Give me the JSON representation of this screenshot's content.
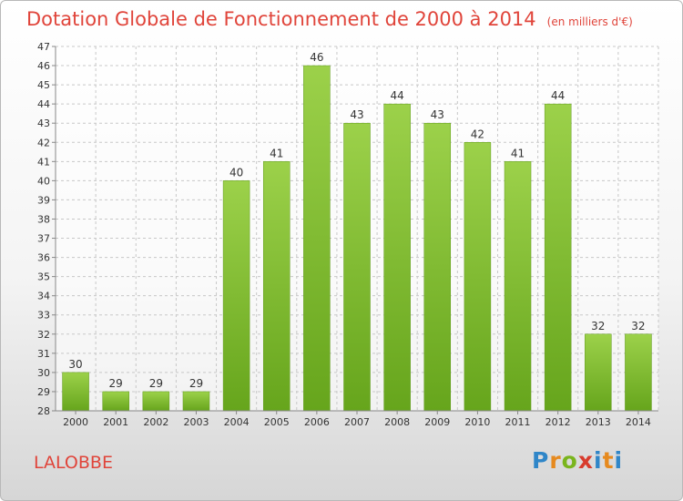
{
  "title": "Dotation Globale de Fonctionnement de 2000 à 2014",
  "subtitle": "(en milliers d'€)",
  "commune": "LALOBBE",
  "logo": {
    "p": "P",
    "r": "r",
    "o": "o",
    "x": "x",
    "i": "i",
    "t": "t",
    "i2": "i"
  },
  "colors": {
    "bar": "#7ab829",
    "title": "#e0443a",
    "grid": "#c8c8c8"
  },
  "chart_data": {
    "type": "bar",
    "categories": [
      "2000",
      "2001",
      "2002",
      "2003",
      "2004",
      "2005",
      "2006",
      "2007",
      "2008",
      "2009",
      "2010",
      "2011",
      "2012",
      "2013",
      "2014"
    ],
    "values": [
      30,
      29,
      29,
      29,
      40,
      41,
      46,
      43,
      44,
      43,
      42,
      41,
      44,
      32,
      32
    ],
    "ylim": [
      28,
      47
    ],
    "yticks": [
      28,
      29,
      30,
      31,
      32,
      33,
      34,
      35,
      36,
      37,
      38,
      39,
      40,
      41,
      42,
      43,
      44,
      45,
      46,
      47
    ],
    "grid": true
  }
}
